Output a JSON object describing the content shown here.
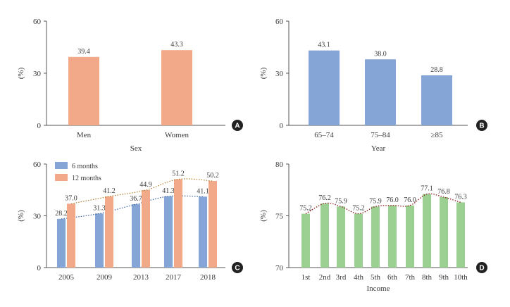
{
  "chart_data": [
    {
      "panel": "A",
      "type": "bar",
      "categories": [
        "Men",
        "Women"
      ],
      "values": [
        39.4,
        43.3
      ],
      "value_labels": [
        "39.4",
        "43.3"
      ],
      "xlabel": "Sex",
      "ylabel": "(%)",
      "ylim": [
        0,
        60
      ],
      "yticks": [
        "0",
        "30",
        "60"
      ],
      "bar_color": "#f2a98a"
    },
    {
      "panel": "B",
      "type": "bar",
      "categories": [
        "65–74",
        "75–84",
        "≥85"
      ],
      "values": [
        43.1,
        38.0,
        28.8
      ],
      "value_labels": [
        "43.1",
        "38.0",
        "28.8"
      ],
      "xlabel": "Year",
      "ylabel": "(%)",
      "ylim": [
        0,
        60
      ],
      "yticks": [
        "0",
        "30",
        "60"
      ],
      "bar_color": "#84a5d6"
    },
    {
      "panel": "C",
      "type": "bar",
      "categories": [
        "2005",
        "2009",
        "2013",
        "2017",
        "2018"
      ],
      "series": [
        {
          "name": "6 months",
          "values": [
            28.2,
            31.3,
            36.7,
            41.3,
            41.1
          ],
          "labels": [
            "28.2",
            "31.3",
            "36.7",
            "41.3",
            "41.1"
          ],
          "color": "#84a5d6",
          "trend_color": "#3b5fa0"
        },
        {
          "name": "12 months",
          "values": [
            37.0,
            41.2,
            44.9,
            51.2,
            50.2
          ],
          "labels": [
            "37.0",
            "41.2",
            "44.9",
            "51.2",
            "50.2"
          ],
          "color": "#f2a98a",
          "trend_color": "#b07a2a"
        }
      ],
      "xlabel": "",
      "ylabel": "(%)",
      "ylim": [
        0,
        60
      ],
      "yticks": [
        "0",
        "30",
        "60"
      ],
      "legend": "top-left"
    },
    {
      "panel": "D",
      "type": "bar",
      "categories": [
        "1st",
        "2nd",
        "3rd",
        "4th",
        "5th",
        "6th",
        "7th",
        "8th",
        "9th",
        "10th"
      ],
      "values": [
        75.2,
        76.2,
        75.9,
        75.2,
        75.9,
        76.0,
        76.0,
        77.1,
        76.8,
        76.3
      ],
      "value_labels": [
        "75.2",
        "76.2",
        "75.9",
        "75.2",
        "75.9",
        "76.0",
        "76.0",
        "77.1",
        "76.8",
        "76.3"
      ],
      "xlabel": "Income",
      "ylabel": "(%)",
      "ylim": [
        70,
        80
      ],
      "yticks": [
        "70",
        "75",
        "80"
      ],
      "bar_color": "#9ccf92",
      "trend_color": "#8b1a1a"
    }
  ]
}
